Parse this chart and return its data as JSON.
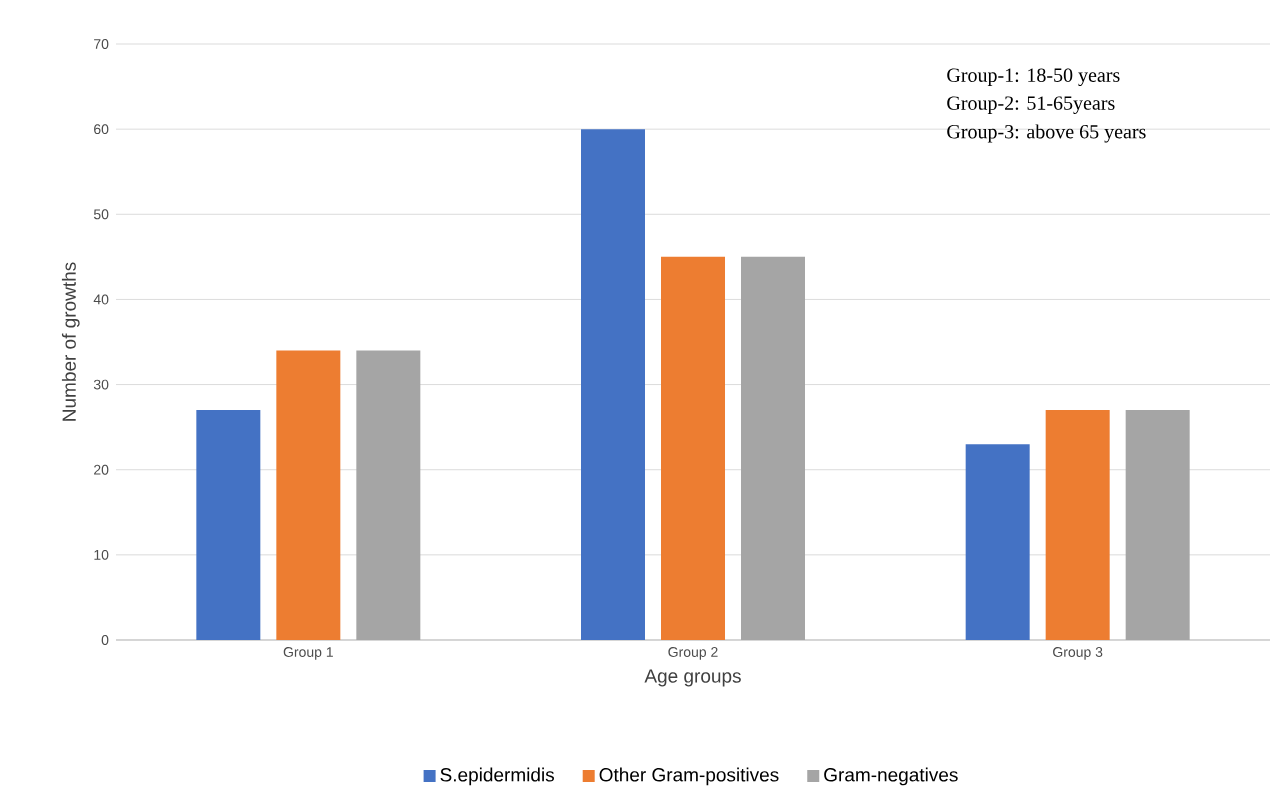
{
  "chart_data": {
    "type": "bar",
    "xlabel": "Age groups",
    "ylabel": "Number of growths",
    "categories": [
      "Group 1",
      "Group 2",
      "Group 3"
    ],
    "series": [
      {
        "name": "S.epidermidis",
        "color": "#4472c4",
        "values": [
          27,
          60,
          23
        ]
      },
      {
        "name": "Other Gram-positives",
        "color": "#ed7d31",
        "values": [
          34,
          45,
          27
        ]
      },
      {
        "name": "Gram-negatives",
        "color": "#a5a5a5",
        "values": [
          34,
          45,
          27
        ]
      }
    ],
    "ylim": [
      0,
      70
    ],
    "yticks": [
      0,
      10,
      20,
      30,
      40,
      50,
      60,
      70
    ],
    "grid": "y",
    "legend": "bottom",
    "annotations": [
      "Group-1: 18-50 years",
      "Group-2: 51-65years",
      "Group-3:  above 65 years"
    ]
  }
}
